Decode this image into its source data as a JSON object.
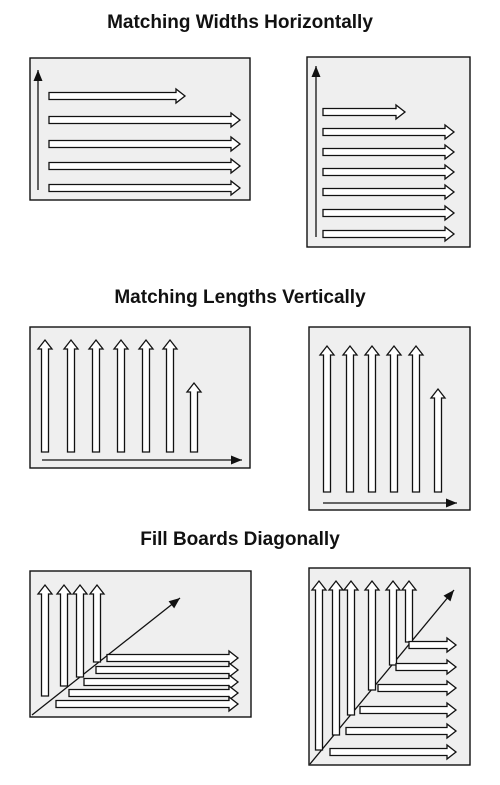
{
  "headings": {
    "horizontal": "Matching Widths Horizontally",
    "vertical": "Matching Lengths Vertically",
    "diagonal": "Fill Boards Diagonally"
  },
  "colors": {
    "panel_fill": "#efefef",
    "panel_border": "#111111",
    "arrow_stroke": "#111111",
    "arrow_fill": "#ffffff"
  }
}
